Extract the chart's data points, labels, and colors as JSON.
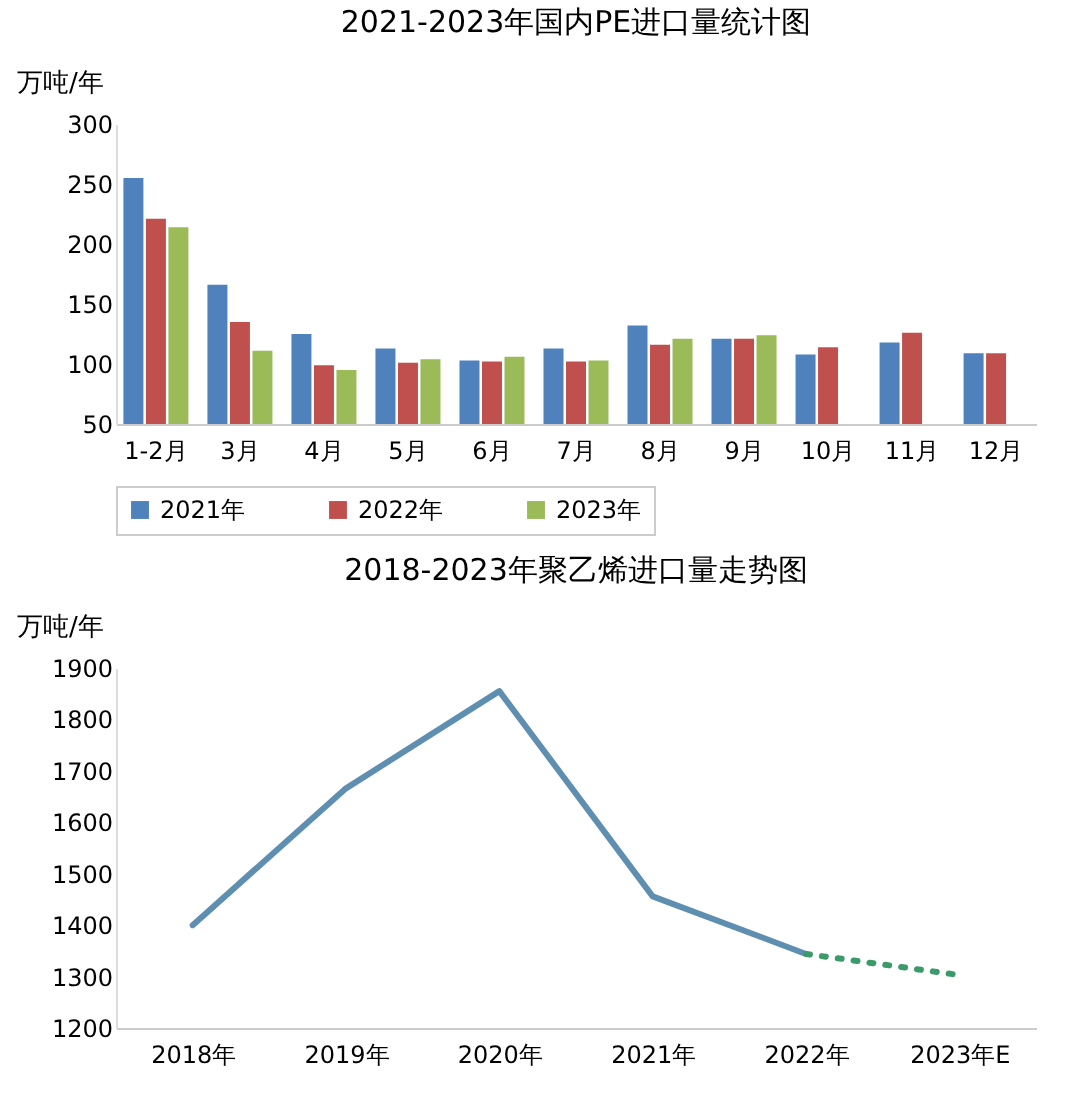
{
  "chart_data": [
    {
      "type": "bar",
      "title": "2021-2023年国内PE进口量统计图",
      "ylabel": "万吨/年",
      "categories": [
        "1-2月",
        "3月",
        "4月",
        "5月",
        "6月",
        "7月",
        "8月",
        "9月",
        "10月",
        "11月",
        "12月"
      ],
      "series": [
        {
          "name": "2021年",
          "color": "#4f81bd",
          "values": [
            255,
            166,
            125,
            113,
            103,
            113,
            132,
            121,
            108,
            118,
            109
          ]
        },
        {
          "name": "2022年",
          "color": "#c0504d",
          "values": [
            221,
            135,
            99,
            101,
            102,
            102,
            116,
            121,
            114,
            126,
            109
          ]
        },
        {
          "name": "2023年",
          "color": "#9bbb59",
          "values": [
            214,
            111,
            95,
            104,
            106,
            103,
            121,
            124,
            null,
            null,
            null
          ]
        }
      ],
      "ylim": [
        50,
        300
      ],
      "yticks": [
        50,
        100,
        150,
        200,
        250,
        300
      ],
      "grid": false,
      "legend": "bottom"
    },
    {
      "type": "line",
      "title": "2018-2023年聚乙烯进口量走势图",
      "ylabel": "万吨/年",
      "categories": [
        "2018年",
        "2019年",
        "2020年",
        "2021年",
        "2022年",
        "2023年E"
      ],
      "series": [
        {
          "color": "#5f8fb0",
          "line_style": "solid",
          "values": [
            1400,
            1666,
            1855,
            1456,
            1344,
            null
          ]
        },
        {
          "color": "#3a9a6a",
          "line_style": "dotted",
          "values": [
            null,
            null,
            null,
            null,
            1344,
            1303
          ]
        }
      ],
      "ylim": [
        1200,
        1900
      ],
      "yticks": [
        1200,
        1300,
        1400,
        1500,
        1600,
        1700,
        1800,
        1900
      ],
      "grid": false,
      "marker": "none"
    }
  ]
}
